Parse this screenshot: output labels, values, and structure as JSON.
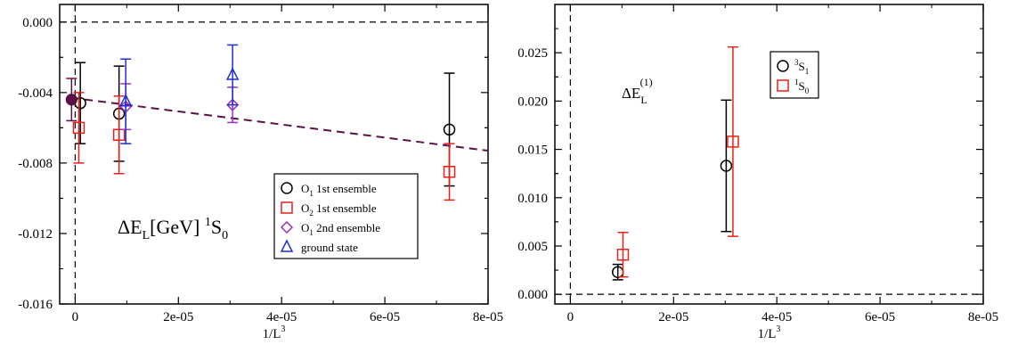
{
  "chart_data": [
    {
      "type": "scatter",
      "xlabel": "1/L",
      "xlabel_sup": "3",
      "xlim": [
        -3e-06,
        8e-05
      ],
      "ylim": [
        -0.016,
        0.001
      ],
      "xticks": [
        0,
        2e-05,
        4e-05,
        6e-05,
        8e-05
      ],
      "xtick_labels": [
        "0",
        "2e-05",
        "4e-05",
        "6e-05",
        "8e-05"
      ],
      "yticks": [
        0,
        -0.004,
        -0.008,
        -0.012,
        -0.016
      ],
      "ytick_labels": [
        "0.000",
        "-0.004",
        "-0.008",
        "-0.012",
        "-0.016"
      ],
      "annotation": {
        "main": "ΔE",
        "sub1": "L",
        "rest": "[GeV] ",
        "sup": "1",
        "end": "S",
        "sub2": "0"
      },
      "legend_position": "lower-right",
      "series": [
        {
          "name": "O₁ 1st ensemble",
          "label_main": "O",
          "label_sub": "1",
          "label_rest": " 1st ensemble",
          "marker": "circle",
          "color": "#000000",
          "points": [
            {
              "x": 1e-06,
              "y": -0.0046,
              "err": 0.0023
            },
            {
              "x": 8.5e-06,
              "y": -0.0052,
              "err": 0.0027
            },
            {
              "x": 7.25e-05,
              "y": -0.0061,
              "err": 0.0032
            }
          ]
        },
        {
          "name": "O₂ 1st ensemble",
          "label_main": "O",
          "label_sub": "2",
          "label_rest": " 1st ensemble",
          "marker": "square",
          "color": "#e8201a",
          "points": [
            {
              "x": 7e-07,
              "y": -0.006,
              "err": 0.002
            },
            {
              "x": 8.5e-06,
              "y": -0.0064,
              "err": 0.0022
            },
            {
              "x": 7.25e-05,
              "y": -0.0085,
              "err": 0.0016
            }
          ]
        },
        {
          "name": "O₁ 2nd ensemble",
          "label_main": "O",
          "label_sub": "1",
          "label_rest": " 2nd ensemble",
          "marker": "diamond",
          "color": "#9a2fc0",
          "points": [
            {
              "x": 9.8e-06,
              "y": -0.0048,
              "err": 0.0013
            },
            {
              "x": 3.05e-05,
              "y": -0.0047,
              "err": 0.001
            }
          ]
        },
        {
          "name": "ground state",
          "label_main": "ground state",
          "label_sub": "",
          "label_rest": "",
          "marker": "triangle",
          "color": "#1c2fd6",
          "points": [
            {
              "x": 9.8e-06,
              "y": -0.0045,
              "err": 0.0024
            },
            {
              "x": 3.05e-05,
              "y": -0.003,
              "err": 0.0017
            }
          ]
        }
      ],
      "extrapolated_point": {
        "x": -7e-07,
        "y": -0.0044,
        "err": 0.0012,
        "color": "#5c1048"
      },
      "fit_line": {
        "x": [
          -7e-07,
          8e-05
        ],
        "y": [
          -0.0043,
          -0.0073
        ],
        "color": "#5c1048"
      }
    },
    {
      "type": "scatter",
      "xlabel": "1/L",
      "xlabel_sup": "3",
      "xlim": [
        -3e-06,
        8e-05
      ],
      "ylim": [
        -0.001,
        0.03
      ],
      "xticks": [
        0,
        2e-05,
        4e-05,
        6e-05,
        8e-05
      ],
      "xtick_labels": [
        "0",
        "2e-05",
        "4e-05",
        "6e-05",
        "8e-05"
      ],
      "yticks": [
        0,
        0.005,
        0.01,
        0.015,
        0.02,
        0.025
      ],
      "ytick_labels": [
        "0.000",
        "0.005",
        "0.010",
        "0.015",
        "0.020",
        "0.025"
      ],
      "annotation": {
        "main": "ΔE",
        "sub1": "L",
        "sup": "(1)"
      },
      "legend_position": "top-right",
      "series": [
        {
          "name": "³S₁",
          "label_sup": "3",
          "label_main": "S",
          "label_sub": "1",
          "marker": "circle",
          "color": "#000000",
          "points": [
            {
              "x": 9.2e-06,
              "y": 0.0023,
              "err": 0.0008
            },
            {
              "x": 3.02e-05,
              "y": 0.0133,
              "err": 0.0068
            }
          ]
        },
        {
          "name": "¹S₀",
          "label_sup": "1",
          "label_main": "S",
          "label_sub": "0",
          "marker": "square",
          "color": "#e8201a",
          "points": [
            {
              "x": 1.02e-05,
              "y": 0.0041,
              "err": 0.0023
            },
            {
              "x": 3.15e-05,
              "y": 0.0158,
              "err": 0.0098
            }
          ]
        }
      ]
    }
  ]
}
